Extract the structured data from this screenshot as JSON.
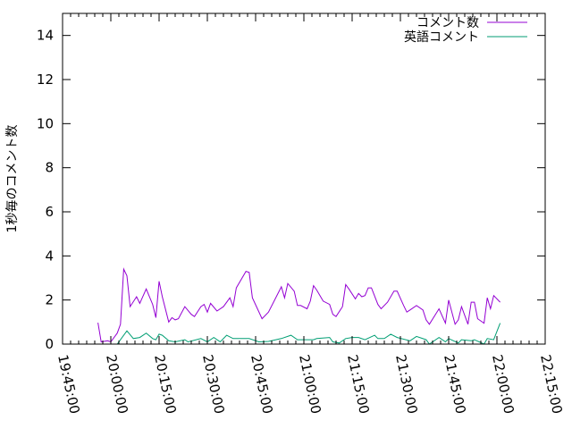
{
  "chart_data": {
    "type": "line",
    "title": "",
    "xlabel": "",
    "ylabel": "1秒毎のコメント数",
    "xlim": [
      "19:45:00",
      "22:15:00"
    ],
    "ylim": [
      0,
      15
    ],
    "xticks": [
      "19:45:00",
      "20:00:00",
      "20:15:00",
      "20:30:00",
      "20:45:00",
      "21:00:00",
      "21:15:00",
      "21:30:00",
      "21:45:00",
      "22:00:00",
      "22:15:00"
    ],
    "yticks": [
      "0",
      "2",
      "4",
      "6",
      "8",
      "10",
      "12",
      "14"
    ],
    "legend": "top-right",
    "grid": false,
    "series": [
      {
        "name": "コメント数",
        "color": "#9400d3",
        "x": [
          "19:56",
          "19:57",
          "19:59",
          "20:00",
          "20:02",
          "20:03",
          "20:04",
          "20:05",
          "20:06",
          "20:08",
          "20:09",
          "20:11",
          "20:13",
          "20:14",
          "20:15",
          "20:16",
          "20:18",
          "20:19",
          "20:20",
          "20:21",
          "20:23",
          "20:25",
          "20:26",
          "20:28",
          "20:29",
          "20:30",
          "20:31",
          "20:33",
          "20:35",
          "20:37",
          "20:38",
          "20:39",
          "20:42",
          "20:43",
          "20:44",
          "20:47",
          "20:49",
          "20:53",
          "20:54",
          "20:55",
          "20:57",
          "20:58",
          "20:59",
          "21:01",
          "21:02",
          "21:03",
          "21:04",
          "21:06",
          "21:08",
          "21:09",
          "21:10",
          "21:12",
          "21:13",
          "21:14",
          "21:16",
          "21:17",
          "21:18",
          "21:19",
          "21:20",
          "21:21",
          "21:23",
          "21:24",
          "21:26",
          "21:28",
          "21:29",
          "21:31",
          "21:32",
          "21:33",
          "21:35",
          "21:37",
          "21:38",
          "21:39",
          "21:42",
          "21:44",
          "21:45",
          "21:47",
          "21:48",
          "21:49",
          "21:51",
          "21:52",
          "21:53",
          "21:54",
          "21:56",
          "21:57",
          "21:58",
          "21:59",
          "22:01"
        ],
        "y": [
          0.97,
          0.1,
          0.15,
          0.1,
          0.5,
          0.9,
          3.4,
          3.1,
          1.7,
          2.15,
          1.85,
          2.5,
          1.8,
          1.2,
          2.85,
          2.15,
          1.0,
          1.2,
          1.1,
          1.15,
          1.7,
          1.35,
          1.25,
          1.7,
          1.8,
          1.45,
          1.85,
          1.5,
          1.7,
          2.1,
          1.7,
          2.55,
          3.3,
          3.25,
          2.1,
          1.15,
          1.45,
          2.6,
          2.1,
          2.75,
          2.4,
          1.75,
          1.75,
          1.6,
          1.95,
          2.65,
          2.45,
          1.95,
          1.8,
          1.35,
          1.25,
          1.7,
          2.7,
          2.5,
          2.05,
          2.3,
          2.15,
          2.2,
          2.55,
          2.55,
          1.8,
          1.6,
          1.9,
          2.4,
          2.4,
          1.75,
          1.45,
          1.55,
          1.75,
          1.55,
          1.1,
          0.9,
          1.6,
          0.95,
          2.0,
          0.9,
          1.1,
          1.7,
          0.9,
          1.9,
          1.9,
          1.15,
          0.95,
          2.1,
          1.6,
          2.2,
          1.9
        ]
      },
      {
        "name": "英語コメント",
        "color": "#009e73",
        "x": [
          "20:02",
          "20:05",
          "20:07",
          "20:09",
          "20:11",
          "20:13",
          "20:14",
          "20:15",
          "20:16",
          "20:18",
          "20:20",
          "20:23",
          "20:24",
          "20:28",
          "20:30",
          "20:32",
          "20:34",
          "20:36",
          "20:38",
          "20:43",
          "20:46",
          "20:49",
          "20:53",
          "20:56",
          "20:58",
          "21:03",
          "21:04",
          "21:08",
          "21:09",
          "21:11",
          "21:13",
          "21:15",
          "21:17",
          "21:19",
          "21:22",
          "21:23",
          "21:25",
          "21:27",
          "21:29",
          "21:33",
          "21:35",
          "21:38",
          "21:39",
          "21:42",
          "21:44",
          "21:45",
          "21:48",
          "21:49",
          "21:52",
          "21:53",
          "21:56",
          "21:57",
          "21:59",
          "22:01"
        ],
        "y": [
          0,
          0.6,
          0.25,
          0.3,
          0.5,
          0.25,
          0.2,
          0.45,
          0.4,
          0.15,
          0.1,
          0.2,
          0.1,
          0.25,
          0.1,
          0.3,
          0.1,
          0.4,
          0.25,
          0.25,
          0.1,
          0.12,
          0.25,
          0.4,
          0.2,
          0.2,
          0.25,
          0.3,
          0.1,
          0.05,
          0.25,
          0.3,
          0.3,
          0.2,
          0.4,
          0.25,
          0.25,
          0.45,
          0.3,
          0.15,
          0.35,
          0.2,
          0.0,
          0.3,
          0.1,
          0.25,
          0.05,
          0.2,
          0.15,
          0.2,
          0.0,
          0.25,
          0.2,
          0.95
        ]
      }
    ]
  }
}
